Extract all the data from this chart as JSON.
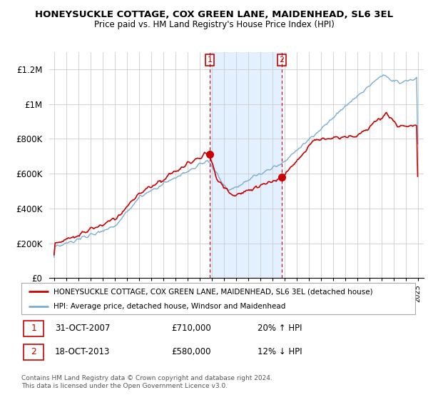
{
  "title": "HONEYSUCKLE COTTAGE, COX GREEN LANE, MAIDENHEAD, SL6 3EL",
  "subtitle": "Price paid vs. HM Land Registry's House Price Index (HPI)",
  "ylim": [
    0,
    1300000
  ],
  "yticks": [
    0,
    200000,
    400000,
    600000,
    800000,
    1000000,
    1200000
  ],
  "ytick_labels": [
    "£0",
    "£200K",
    "£400K",
    "£600K",
    "£800K",
    "£1M",
    "£1.2M"
  ],
  "hpi_color": "#7aadd4",
  "property_color": "#cc0000",
  "legend_property": "HONEYSUCKLE COTTAGE, COX GREEN LANE, MAIDENHEAD, SL6 3EL (detached house)",
  "legend_hpi": "HPI: Average price, detached house, Windsor and Maidenhead",
  "t1_year_float": 2007.833,
  "t1_price": 710000,
  "t2_year_float": 2013.792,
  "t2_price": 580000,
  "transaction1_date": "31-OCT-2007",
  "transaction1_price": "£710,000",
  "transaction1_hpi": "20% ↑ HPI",
  "transaction2_date": "18-OCT-2013",
  "transaction2_price": "£580,000",
  "transaction2_hpi": "12% ↓ HPI",
  "footer": "Contains HM Land Registry data © Crown copyright and database right 2024.\nThis data is licensed under the Open Government Licence v3.0.",
  "shaded_color": "#ddeeff",
  "grid_color": "#cccccc",
  "xlim_left": 1994.6,
  "xlim_right": 2025.5
}
